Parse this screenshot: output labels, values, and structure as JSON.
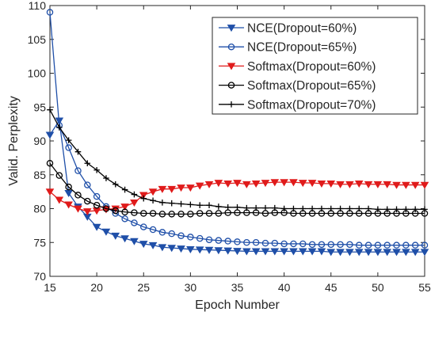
{
  "chart_data": {
    "type": "line",
    "xlabel": "Epoch Number",
    "ylabel": "Valid. Perplexity",
    "xlim": [
      15,
      55
    ],
    "ylim": [
      70,
      110
    ],
    "xticks": [
      15,
      20,
      25,
      30,
      35,
      40,
      45,
      50,
      55
    ],
    "yticks": [
      70,
      75,
      80,
      85,
      90,
      95,
      100,
      105,
      110
    ],
    "grid": false,
    "legend_position": "top-right",
    "x": [
      15,
      16,
      17,
      18,
      19,
      20,
      21,
      22,
      23,
      24,
      25,
      26,
      27,
      28,
      29,
      30,
      31,
      32,
      33,
      34,
      35,
      36,
      37,
      38,
      39,
      40,
      41,
      42,
      43,
      44,
      45,
      46,
      47,
      48,
      49,
      50,
      51,
      52,
      53,
      54,
      55
    ],
    "series": [
      {
        "name": "NCE(Dropout=60%)",
        "color": "#1f4fa8",
        "marker": "triangle-down",
        "values": [
          90.9,
          93.0,
          82.3,
          80.3,
          78.8,
          77.3,
          76.6,
          76.0,
          75.6,
          75.2,
          74.8,
          74.6,
          74.3,
          74.2,
          74.1,
          74.0,
          73.95,
          73.9,
          73.85,
          73.8,
          73.75,
          73.7,
          73.7,
          73.7,
          73.7,
          73.7,
          73.7,
          73.7,
          73.7,
          73.7,
          73.6,
          73.6,
          73.6,
          73.6,
          73.6,
          73.6,
          73.6,
          73.6,
          73.6,
          73.6,
          73.6
        ]
      },
      {
        "name": "NCE(Dropout=65%)",
        "color": "#1f4fa8",
        "marker": "circle",
        "values": [
          109.0,
          92.3,
          89.0,
          85.6,
          83.5,
          81.8,
          80.3,
          79.3,
          78.5,
          77.9,
          77.3,
          76.9,
          76.5,
          76.3,
          76.0,
          75.8,
          75.6,
          75.4,
          75.3,
          75.2,
          75.1,
          75.0,
          75.0,
          74.9,
          74.9,
          74.8,
          74.8,
          74.8,
          74.7,
          74.7,
          74.7,
          74.7,
          74.7,
          74.6,
          74.6,
          74.6,
          74.6,
          74.6,
          74.6,
          74.6,
          74.6
        ]
      },
      {
        "name": "Softmax(Dropout=60%)",
        "color": "#e01b1b",
        "marker": "triangle-down",
        "values": [
          82.5,
          81.3,
          80.6,
          80.0,
          79.6,
          79.7,
          79.9,
          80.0,
          80.3,
          80.9,
          82.0,
          82.5,
          82.9,
          82.9,
          83.1,
          83.1,
          83.4,
          83.6,
          83.8,
          83.7,
          83.8,
          83.6,
          83.7,
          83.8,
          83.9,
          83.9,
          83.9,
          83.8,
          83.8,
          83.7,
          83.7,
          83.6,
          83.6,
          83.7,
          83.6,
          83.6,
          83.6,
          83.5,
          83.5,
          83.5,
          83.5
        ]
      },
      {
        "name": "Softmax(Dropout=65%)",
        "color": "#000000",
        "marker": "circle",
        "values": [
          86.7,
          84.9,
          83.2,
          82.0,
          81.1,
          80.5,
          80.0,
          79.7,
          79.5,
          79.4,
          79.3,
          79.3,
          79.2,
          79.2,
          79.2,
          79.2,
          79.3,
          79.3,
          79.3,
          79.4,
          79.4,
          79.4,
          79.4,
          79.3,
          79.4,
          79.4,
          79.3,
          79.3,
          79.3,
          79.3,
          79.3,
          79.3,
          79.3,
          79.3,
          79.3,
          79.3,
          79.3,
          79.3,
          79.3,
          79.3,
          79.3
        ]
      },
      {
        "name": "Softmax(Dropout=70%)",
        "color": "#000000",
        "marker": "plus",
        "values": [
          94.6,
          92.0,
          90.1,
          88.4,
          86.7,
          85.7,
          84.5,
          83.6,
          82.8,
          82.1,
          81.5,
          81.2,
          80.9,
          80.8,
          80.7,
          80.6,
          80.5,
          80.5,
          80.3,
          80.2,
          80.2,
          80.1,
          80.1,
          80.1,
          80.1,
          80.0,
          80.0,
          80.0,
          80.0,
          80.0,
          80.0,
          80.0,
          80.0,
          80.0,
          80.0,
          79.9,
          79.9,
          79.9,
          79.9,
          79.9,
          79.9
        ]
      }
    ]
  }
}
